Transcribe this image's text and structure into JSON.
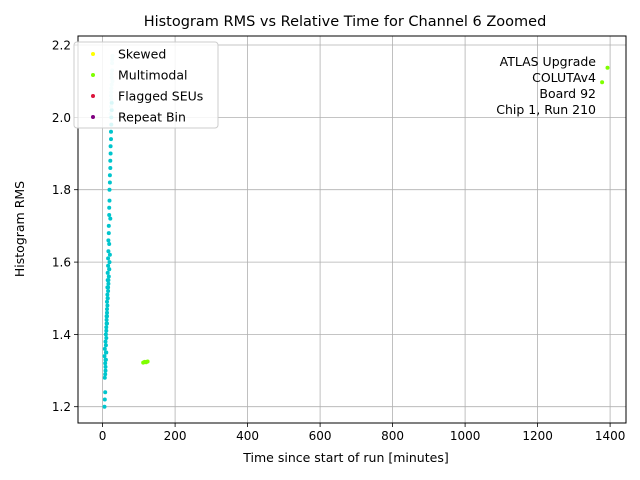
{
  "chart_data": {
    "type": "scatter",
    "title": "Histogram RMS vs Relative Time for Channel 6 Zoomed",
    "xlabel": "Time since start of run [minutes]",
    "ylabel": "Histogram RMS",
    "xlim": [
      -68,
      1444
    ],
    "ylim": [
      1.155,
      2.225
    ],
    "xticks": [
      0,
      200,
      400,
      600,
      800,
      1000,
      1200,
      1400
    ],
    "yticks": [
      1.2,
      1.4,
      1.6,
      1.8,
      2.0,
      2.2
    ],
    "grid": true,
    "legend_position": "upper-left",
    "legend": [
      {
        "label": "Skewed",
        "color": "#ffff00"
      },
      {
        "label": "Multimodal",
        "color": "#7fff00"
      },
      {
        "label": "Flagged SEUs",
        "color": "#dc143c"
      },
      {
        "label": "Repeat Bin",
        "color": "#800080"
      }
    ],
    "annotation": [
      "ATLAS Upgrade",
      "COLUTAv4",
      "Board 92",
      "Chip 1, Run 210"
    ],
    "series": [
      {
        "color": "#00c5cd",
        "x": [
          5,
          6,
          7,
          7,
          8,
          8,
          9,
          9,
          10,
          10,
          11,
          11,
          12,
          12,
          13,
          13,
          14,
          14,
          15,
          15,
          16,
          16,
          17,
          17,
          18,
          18,
          19,
          19,
          20,
          20,
          21,
          21,
          22,
          22,
          23,
          23,
          24,
          24,
          25,
          25,
          5,
          6,
          7,
          8,
          9,
          10,
          11,
          12,
          13,
          14,
          15,
          16,
          17,
          18,
          19,
          20,
          8,
          10,
          12,
          14,
          16,
          18,
          6,
          9,
          12,
          15,
          18,
          21
        ],
        "y": [
          1.2,
          1.22,
          1.24,
          1.29,
          1.31,
          1.33,
          1.35,
          1.37,
          1.39,
          1.41,
          1.43,
          1.45,
          1.47,
          1.49,
          1.51,
          1.53,
          1.55,
          1.57,
          1.59,
          1.61,
          1.63,
          1.66,
          1.68,
          1.7,
          1.73,
          1.75,
          1.77,
          1.8,
          1.82,
          1.84,
          1.86,
          1.88,
          1.9,
          1.92,
          1.94,
          1.96,
          1.98,
          2.0,
          2.02,
          2.04,
          1.34,
          1.36,
          1.32,
          1.38,
          1.4,
          1.42,
          1.44,
          1.46,
          1.48,
          1.5,
          1.52,
          1.54,
          1.56,
          1.58,
          1.6,
          1.62,
          1.3,
          1.35,
          1.45,
          1.5,
          1.55,
          1.65,
          1.28,
          1.33,
          1.43,
          1.53,
          1.58,
          1.72
        ]
      },
      {
        "color": "#b8f0f0",
        "x": [
          22,
          23,
          24,
          24,
          25,
          25,
          26,
          26,
          27,
          27,
          23,
          25,
          26,
          24
        ],
        "y": [
          2.01,
          2.03,
          2.05,
          2.07,
          2.09,
          2.11,
          2.13,
          2.15,
          2.17,
          2.1,
          2.06,
          2.12,
          2.16,
          2.08
        ]
      },
      {
        "color": "#7fff00",
        "x": [
          112,
          116,
          120,
          124,
          1378,
          1393
        ],
        "y": [
          1.322,
          1.324,
          1.323,
          1.325,
          2.097,
          2.137
        ]
      }
    ]
  }
}
